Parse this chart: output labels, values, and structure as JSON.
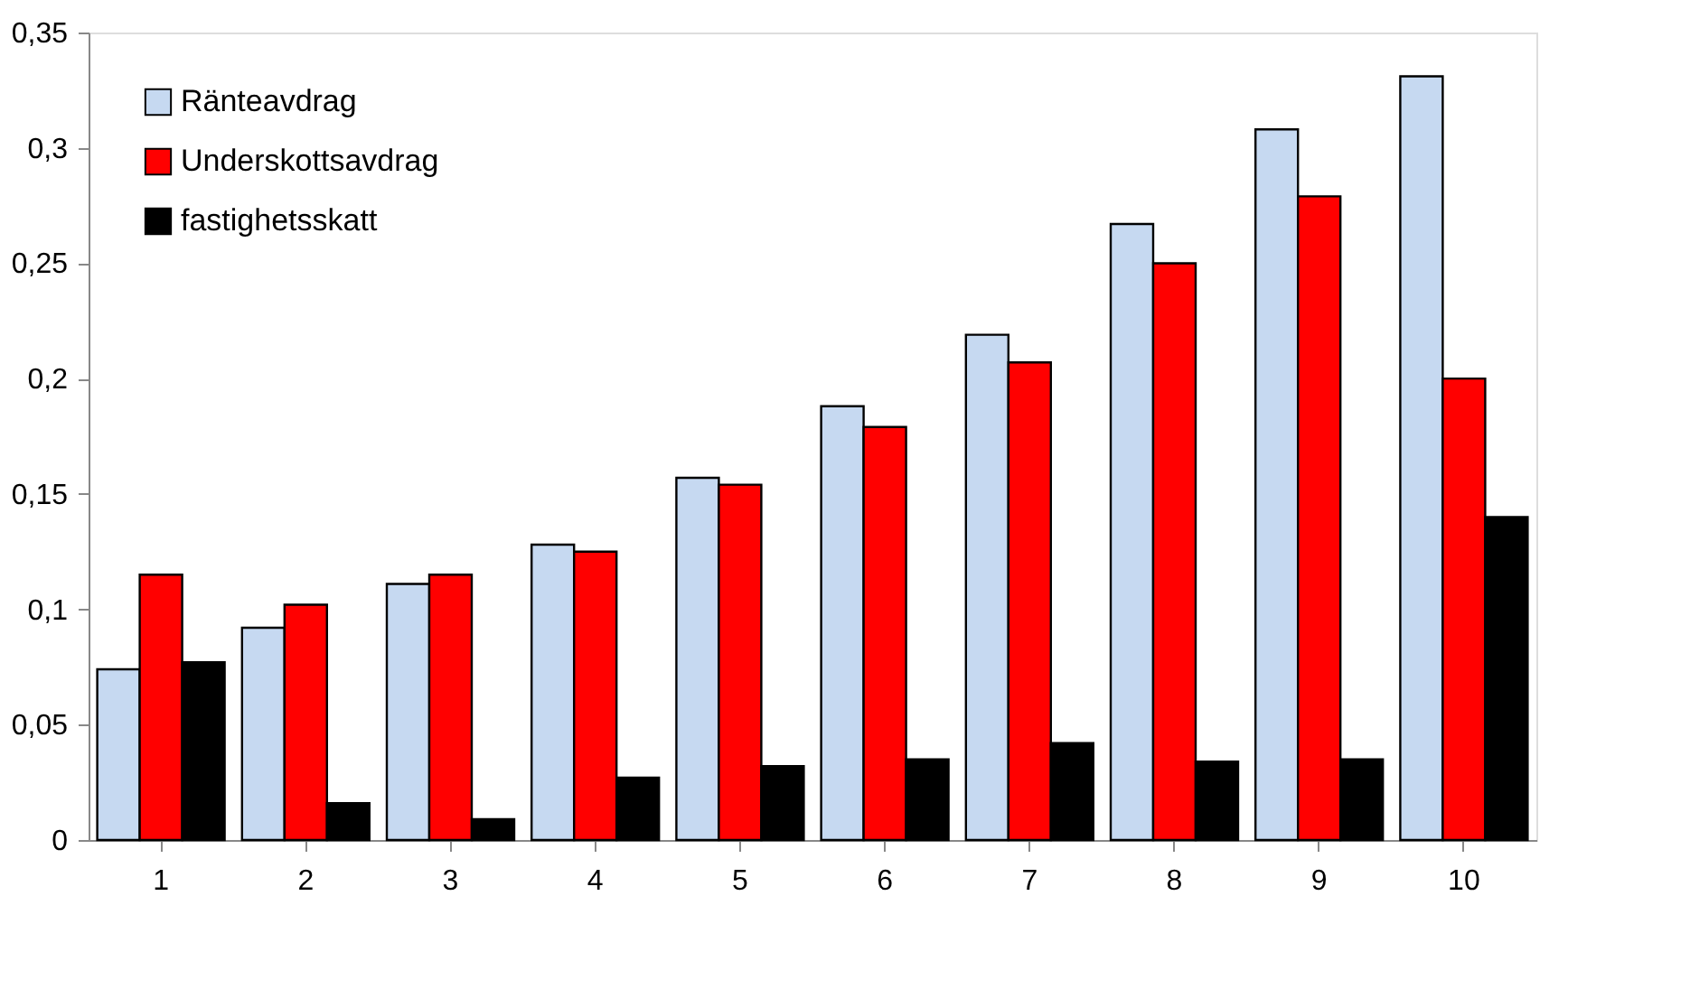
{
  "chart_data": {
    "type": "bar",
    "categories": [
      "1",
      "2",
      "3",
      "4",
      "5",
      "6",
      "7",
      "8",
      "9",
      "10"
    ],
    "series": [
      {
        "name": "Ränteavdrag",
        "color": "#c6d9f1",
        "values": [
          0.074,
          0.092,
          0.111,
          0.128,
          0.157,
          0.188,
          0.219,
          0.267,
          0.308,
          0.331
        ]
      },
      {
        "name": "Underskottsavdrag",
        "color": "#ff0000",
        "values": [
          0.115,
          0.102,
          0.115,
          0.125,
          0.154,
          0.179,
          0.207,
          0.25,
          0.279,
          0.2
        ]
      },
      {
        "name": "fastighetsskatt",
        "color": "#000000",
        "values": [
          0.077,
          0.016,
          0.009,
          0.027,
          0.032,
          0.035,
          0.042,
          0.034,
          0.035,
          0.14
        ]
      }
    ],
    "ylim": [
      0,
      0.35
    ],
    "yticks": [
      0,
      {
        "value": 0.05,
        "label": "0,05"
      },
      {
        "value": 0.1,
        "label": "0,1"
      },
      {
        "value": 0.15,
        "label": "0,15"
      },
      {
        "value": 0.2,
        "label": "0,2"
      },
      {
        "value": 0.25,
        "label": "0,25"
      },
      {
        "value": 0.3,
        "label": "0,3"
      },
      {
        "value": 0.35,
        "label": "0,35"
      }
    ],
    "grid": false,
    "legend": "top left"
  }
}
